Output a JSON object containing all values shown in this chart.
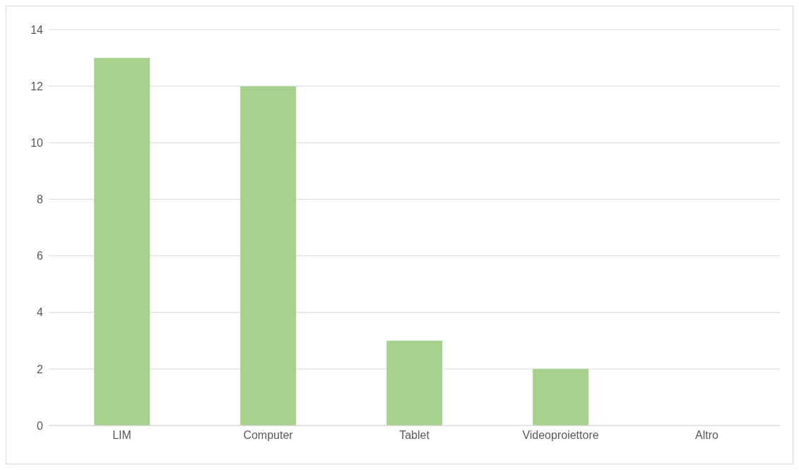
{
  "chart_data": {
    "type": "bar",
    "categories": [
      "LIM",
      "Computer",
      "Tablet",
      "Videoproiettore",
      "Altro"
    ],
    "values": [
      13,
      12,
      3,
      2,
      0
    ],
    "color": "#a9d18e",
    "ylim": [
      0,
      14
    ],
    "yticks": [
      0,
      2,
      4,
      6,
      8,
      10,
      12,
      14
    ],
    "grid": "y"
  }
}
